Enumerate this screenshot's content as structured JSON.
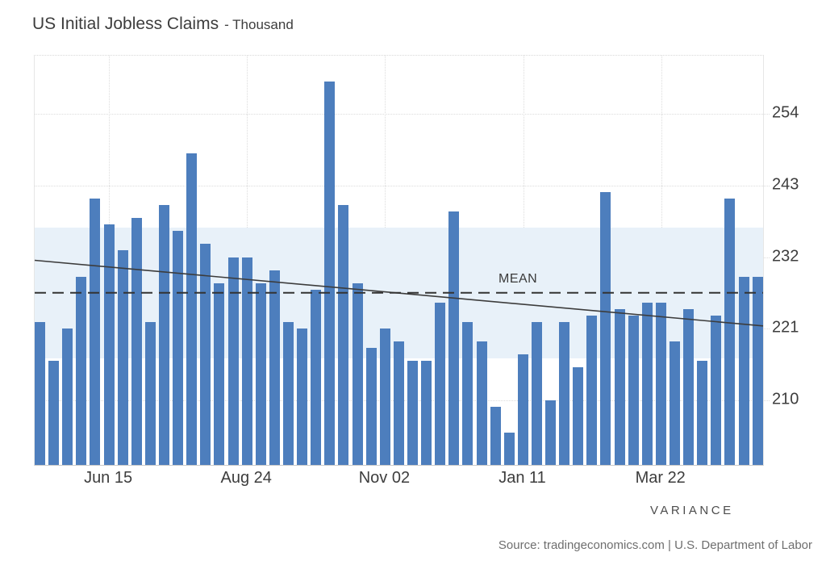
{
  "title": {
    "main": "US Initial Jobless Claims",
    "suffix": "- Thousand"
  },
  "chart_data": {
    "type": "bar",
    "title": "US Initial Jobless Claims",
    "unit": "Thousand",
    "x": [
      "2024-05-11",
      "2024-05-18",
      "2024-05-25",
      "2024-06-01",
      "2024-06-08",
      "2024-06-15",
      "2024-06-22",
      "2024-06-29",
      "2024-07-06",
      "2024-07-13",
      "2024-07-20",
      "2024-07-27",
      "2024-08-03",
      "2024-08-10",
      "2024-08-17",
      "2024-08-24",
      "2024-08-31",
      "2024-09-07",
      "2024-09-14",
      "2024-09-21",
      "2024-09-28",
      "2024-10-05",
      "2024-10-12",
      "2024-10-19",
      "2024-10-26",
      "2024-11-02",
      "2024-11-09",
      "2024-11-16",
      "2024-11-23",
      "2024-11-30",
      "2024-12-07",
      "2024-12-14",
      "2024-12-21",
      "2024-12-28",
      "2025-01-04",
      "2025-01-11",
      "2025-01-18",
      "2025-01-25",
      "2025-02-01",
      "2025-02-08",
      "2025-02-15",
      "2025-02-22",
      "2025-03-01",
      "2025-03-08",
      "2025-03-15",
      "2025-03-22",
      "2025-03-29",
      "2025-04-05",
      "2025-04-12",
      "2025-04-19",
      "2025-04-26",
      "2025-05-03",
      "2025-05-10"
    ],
    "values": [
      222,
      216,
      221,
      229,
      241,
      237,
      233,
      238,
      222,
      240,
      236,
      248,
      234,
      228,
      232,
      232,
      228,
      230,
      222,
      221,
      227,
      259,
      240,
      228,
      218,
      221,
      219,
      216,
      216,
      225,
      239,
      222,
      219,
      209,
      205,
      217,
      222,
      210,
      222,
      215,
      223,
      242,
      224,
      223,
      225,
      225,
      219,
      224,
      216,
      223,
      241,
      229,
      229
    ],
    "xtick_indices": [
      5,
      15,
      25,
      35,
      45
    ],
    "xtick_labels": [
      "Jun 15",
      "Aug 24",
      "Nov 02",
      "Jan 11",
      "Mar 22"
    ],
    "yticks": [
      254,
      243,
      232,
      221,
      210
    ],
    "ytick_labels": [
      "254",
      "243",
      "232",
      "221",
      "210"
    ],
    "ylim": [
      200,
      263
    ],
    "grid": true,
    "legend_position": "none",
    "mean": 226.5,
    "mean_label": "MEAN",
    "variance_band": {
      "label": "VARIANCE",
      "from": 216.4,
      "to": 236.6
    },
    "trend_line": {
      "start_value": 231.5,
      "end_value": 221.4
    },
    "colors": {
      "bar": "#4d7ebd",
      "variance_band": "#e8f1f9",
      "mean_line": "#333333",
      "trend_line": "#3c3c3c",
      "grid": "#dcdcdc",
      "axis_text": "#3d3d3d"
    }
  },
  "footer": {
    "source": "Source: tradingeconomics.com | U.S. Department of Labor"
  }
}
